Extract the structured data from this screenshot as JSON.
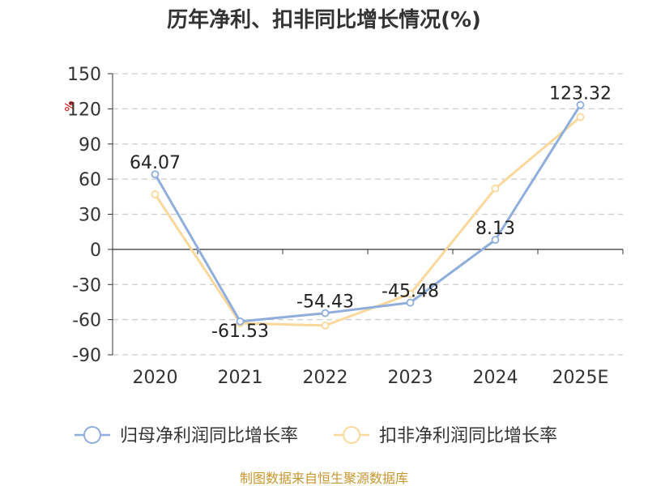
{
  "chart_data": {
    "type": "line",
    "title": "历年净利、扣非同比增长情况(%)",
    "ylabel": "%",
    "xlabel": "",
    "ylim": [
      -90,
      150
    ],
    "yticks": [
      150,
      120,
      90,
      60,
      30,
      0,
      -30,
      -60,
      -90
    ],
    "categories": [
      "2020",
      "2021",
      "2022",
      "2023",
      "2024",
      "2025E"
    ],
    "grid": true,
    "legend_position": "bottom",
    "series": [
      {
        "name": "归母净利润同比增长率",
        "values": [
          64.07,
          -61.53,
          -54.43,
          -45.48,
          8.13,
          123.32
        ],
        "labels": [
          "64.07",
          "-61.53",
          "-54.43",
          "-45.48",
          "8.13",
          "123.32"
        ],
        "color": "#8faedb"
      },
      {
        "name": "扣非净利润同比增长率",
        "values": [
          47,
          -63,
          -65,
          -38,
          52,
          113
        ],
        "color": "#fad89b"
      }
    ]
  },
  "footer": {
    "source": "制图数据来自恒生聚源数据库"
  }
}
